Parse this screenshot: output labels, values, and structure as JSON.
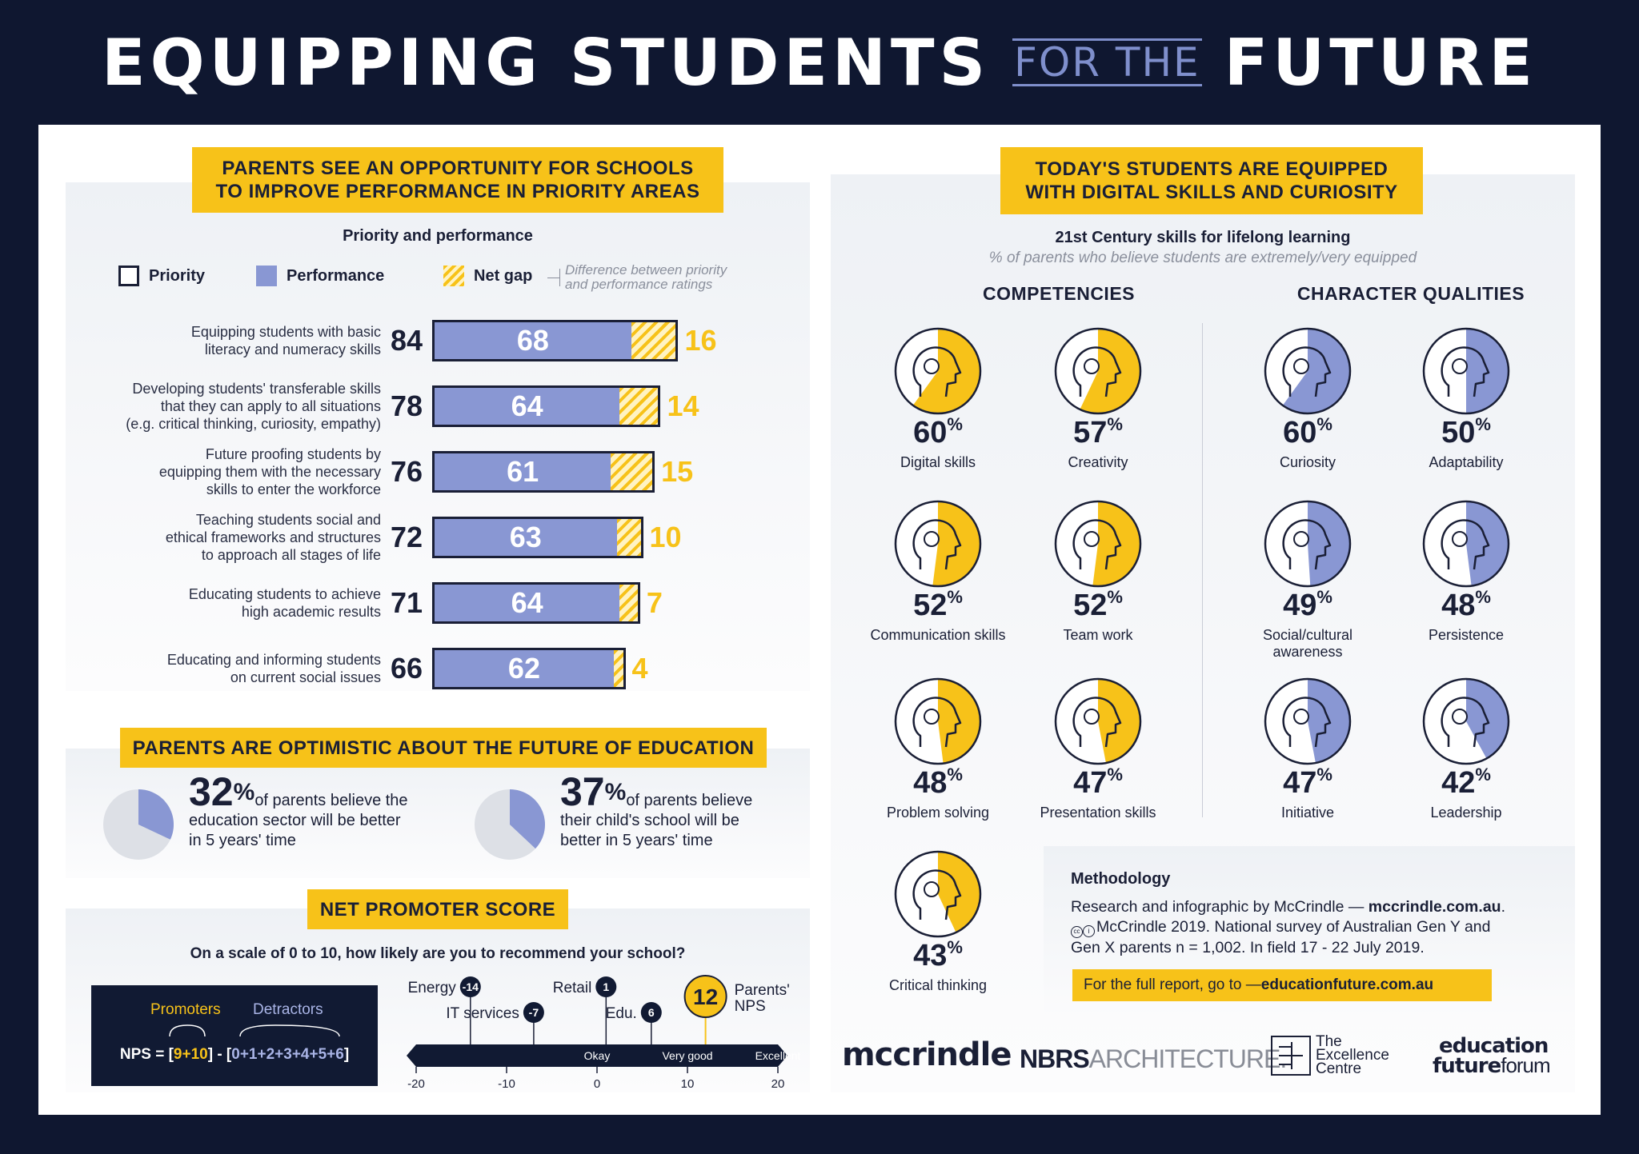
{
  "header": {
    "part1": "EQUIPPING STUDENTS",
    "part2": "FOR THE",
    "part3": "FUTURE"
  },
  "priority_section": {
    "banner_line1": "PARENTS SEE AN OPPORTUNITY FOR SCHOOLS",
    "banner_line2": "TO IMPROVE PERFORMANCE IN PRIORITY AREAS",
    "title": "Priority and performance",
    "legend": {
      "priority": "Priority",
      "performance": "Performance",
      "gap": "Net gap",
      "gap_note1": "Difference between priority",
      "gap_note2": "and performance ratings"
    }
  },
  "chart_data": [
    {
      "type": "bar",
      "title": "Priority and performance",
      "categories": [
        [
          "Equipping students with basic",
          "literacy and numeracy skills"
        ],
        [
          "Developing students' transferable skills",
          "that they can apply to all situations",
          "(e.g. critical thinking, curiosity, empathy)"
        ],
        [
          "Future proofing students by",
          "equipping them with the necessary",
          "skills to enter the workforce"
        ],
        [
          "Teaching students social and",
          "ethical frameworks and structures",
          "to approach all stages of life"
        ],
        [
          "Educating students to achieve",
          "high academic results"
        ],
        [
          "Educating and informing students",
          "on current social issues"
        ]
      ],
      "series": [
        {
          "name": "Priority",
          "values": [
            84,
            78,
            76,
            72,
            71,
            66
          ]
        },
        {
          "name": "Performance",
          "values": [
            68,
            64,
            61,
            63,
            64,
            62
          ]
        },
        {
          "name": "Net gap",
          "values": [
            16,
            14,
            15,
            10,
            7,
            4
          ]
        }
      ],
      "legend": "top"
    },
    {
      "type": "pie",
      "values": [
        32,
        68
      ],
      "label_pct": "32",
      "label_text1": "of parents believe the",
      "label_text2": "education sector will be better",
      "label_text3": "in 5 years' time"
    },
    {
      "type": "pie",
      "values": [
        37,
        63
      ],
      "label_pct": "37",
      "label_text1": "of parents believe",
      "label_text2": "their child's school will be",
      "label_text3": "better in 5 years' time"
    },
    {
      "type": "scatter",
      "title": "NET PROMOTER SCORE",
      "x_ticks": [
        -20,
        -10,
        0,
        10,
        20
      ],
      "xlim": [
        -20,
        20
      ],
      "scale_labels": [
        "Okay",
        "Very good",
        "Excellent"
      ],
      "points": [
        {
          "name": "Energy",
          "value": -14
        },
        {
          "name": "IT services",
          "value": -7
        },
        {
          "name": "Retail",
          "value": 1
        },
        {
          "name": "Edu.",
          "value": 6
        },
        {
          "name": "Parents' NPS",
          "value": 12
        }
      ]
    },
    {
      "type": "bar",
      "title": "21st Century skills for lifelong learning",
      "subtitle": "% of parents who believe students are extremely/very equipped",
      "groups": [
        {
          "name": "COMPETENCIES",
          "items": [
            {
              "name": "Digital skills",
              "value": 60
            },
            {
              "name": "Creativity",
              "value": 57
            },
            {
              "name": "Communication skills",
              "value": 52
            },
            {
              "name": "Team work",
              "value": 52
            },
            {
              "name": "Problem solving",
              "value": 48
            },
            {
              "name": "Presentation skills",
              "value": 47
            },
            {
              "name": "Critical thinking",
              "value": 43
            }
          ]
        },
        {
          "name": "CHARACTER QUALITIES",
          "items": [
            {
              "name": "Curiosity",
              "value": 60
            },
            {
              "name": "Adaptability",
              "value": 50
            },
            {
              "name": "Social/cultural awareness",
              "value": 49
            },
            {
              "name": "Persistence",
              "value": 48
            },
            {
              "name": "Initiative",
              "value": 47
            },
            {
              "name": "Leadership",
              "value": 42
            }
          ]
        }
      ]
    }
  ],
  "optimism_section": {
    "banner": "PARENTS ARE OPTIMISTIC ABOUT THE FUTURE OF EDUCATION"
  },
  "nps_section": {
    "banner": "NET PROMOTER SCORE",
    "question": "On a scale of 0 to 10, how likely are you to recommend your school?",
    "promoters": "Promoters",
    "detractors": "Detractors",
    "formula_prefix": "NPS = [",
    "formula_promoters": "9+10",
    "formula_mid": "] - [",
    "formula_detractors": "0+1+2+3+4+5+6",
    "formula_suffix": "]",
    "parents_label1": "Parents'",
    "parents_label2": "NPS"
  },
  "skills_section": {
    "banner_line1": "TODAY'S STUDENTS ARE EQUIPPED",
    "banner_line2": "WITH DIGITAL SKILLS AND CURIOSITY",
    "title": "21st Century skills for lifelong learning",
    "subtitle": "% of parents who believe students are extremely/very equipped",
    "col1": "COMPETENCIES",
    "col2": "CHARACTER QUALITIES"
  },
  "methodology": {
    "title": "Methodology",
    "line1a": "Research and infographic by McCrindle — ",
    "line1b": "mccrindle.com.au",
    "line1c": ".",
    "line2": "McCrindle 2019. National survey of Australian Gen Y and",
    "line3": "Gen X parents n = 1,002. In field 17 - 22 July 2019.",
    "cta_a": "For the full report, go to — ",
    "cta_b": "educationfuture.com.au"
  },
  "logos": {
    "mccrindle": "mccrindle",
    "nbrs_a": "NBRS",
    "nbrs_b": "ARCHITECTURE.",
    "excellence1": "The",
    "excellence2": "Excellence",
    "excellence3": "Centre",
    "eff1": "education",
    "eff2a": "future",
    "eff2b": "forum"
  },
  "colors": {
    "navy": "#0f1730",
    "yellow": "#f7c219",
    "periwinkle": "#8997d3"
  }
}
